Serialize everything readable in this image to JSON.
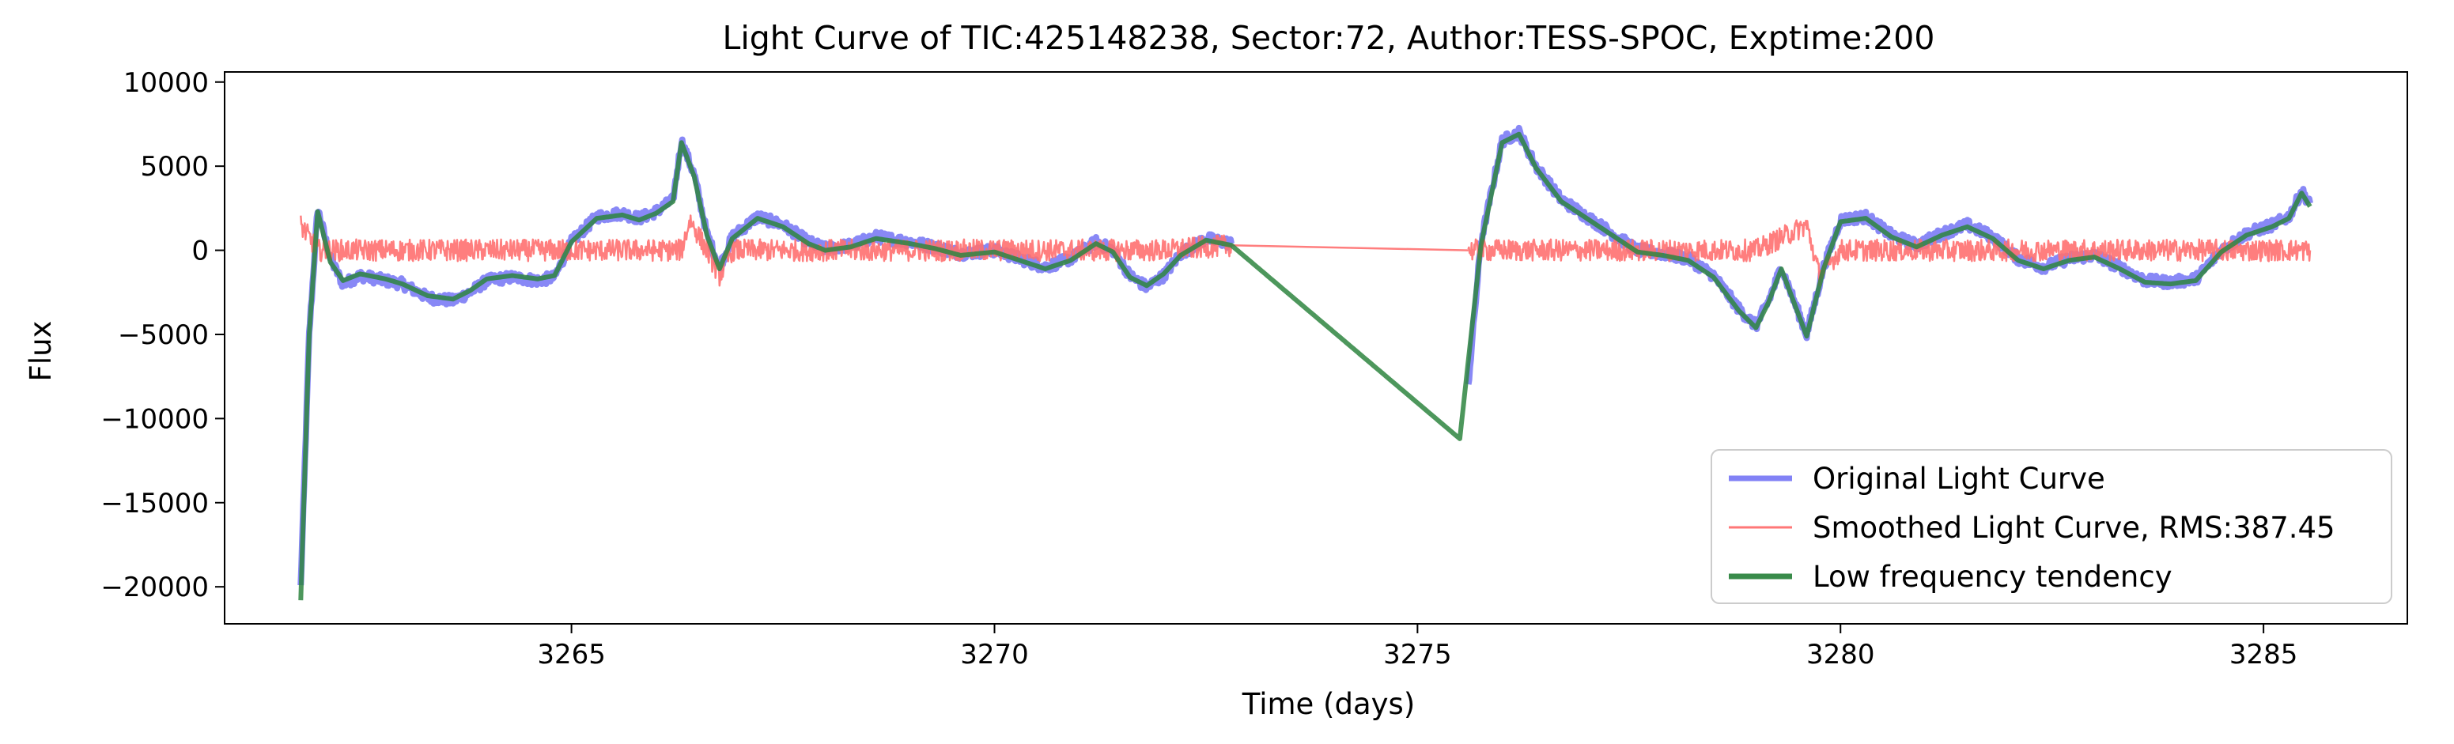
{
  "chart_data": {
    "type": "line",
    "title": "Light Curve of TIC:425148238, Sector:72, Author:TESS-SPOC, Exptime:200",
    "xlabel": "Time (days)",
    "ylabel": "Flux",
    "xlim": [
      3260.9,
      3286.7
    ],
    "ylim": [
      -22200,
      10600
    ],
    "xticks": [
      3265,
      3270,
      3275,
      3280,
      3285
    ],
    "xtick_labels": [
      "3265",
      "3270",
      "3275",
      "3280",
      "3285"
    ],
    "yticks": [
      10000,
      5000,
      0,
      -5000,
      -10000,
      -15000,
      -20000
    ],
    "ytick_labels": [
      "10000",
      "5000",
      "0",
      "−5000",
      "−10000",
      "−15000",
      "−20000"
    ],
    "grid": false,
    "legend_position": "lower-right",
    "series": [
      {
        "name": "Original Light Curve",
        "color": "#7b7bf5",
        "style": "thick-noisy",
        "segments": [
          [
            [
              3261.8,
              -20000
            ],
            [
              3261.9,
              -5000
            ],
            [
              3262.0,
              2500
            ],
            [
              3262.15,
              -500
            ],
            [
              3262.3,
              -2000
            ],
            [
              3262.5,
              -1500
            ],
            [
              3262.8,
              -1800
            ],
            [
              3263.0,
              -2000
            ],
            [
              3263.3,
              -2800
            ],
            [
              3263.6,
              -3000
            ],
            [
              3263.8,
              -2500
            ],
            [
              3264.0,
              -1800
            ],
            [
              3264.3,
              -1600
            ],
            [
              3264.6,
              -1800
            ],
            [
              3264.8,
              -1600
            ],
            [
              3265.0,
              500
            ],
            [
              3265.3,
              2000
            ],
            [
              3265.6,
              2200
            ],
            [
              3265.8,
              1900
            ],
            [
              3266.0,
              2300
            ],
            [
              3266.2,
              3000
            ],
            [
              3266.3,
              6500
            ],
            [
              3266.45,
              4500
            ],
            [
              3266.6,
              1000
            ],
            [
              3266.75,
              -1000
            ],
            [
              3266.9,
              800
            ],
            [
              3267.2,
              2000
            ],
            [
              3267.5,
              1500
            ],
            [
              3267.8,
              500
            ],
            [
              3268.0,
              100
            ],
            [
              3268.3,
              300
            ],
            [
              3268.6,
              800
            ],
            [
              3269.0,
              500
            ],
            [
              3269.3,
              200
            ],
            [
              3269.6,
              -200
            ],
            [
              3270.0,
              0
            ],
            [
              3270.3,
              -500
            ],
            [
              3270.6,
              -1000
            ],
            [
              3270.9,
              -500
            ],
            [
              3271.2,
              500
            ],
            [
              3271.4,
              0
            ],
            [
              3271.6,
              -1500
            ],
            [
              3271.8,
              -2200
            ],
            [
              3272.0,
              -1500
            ],
            [
              3272.2,
              -200
            ],
            [
              3272.5,
              700
            ],
            [
              3272.8,
              400
            ]
          ],
          [
            [
              3275.6,
              -8000
            ],
            [
              3275.75,
              500
            ],
            [
              3276.0,
              6500
            ],
            [
              3276.2,
              7000
            ],
            [
              3276.4,
              5000
            ],
            [
              3276.7,
              3000
            ],
            [
              3277.0,
              2000
            ],
            [
              3277.3,
              1000
            ],
            [
              3277.6,
              0
            ],
            [
              3277.9,
              -200
            ],
            [
              3278.2,
              -500
            ],
            [
              3278.5,
              -1500
            ],
            [
              3278.8,
              -3500
            ],
            [
              3279.0,
              -4500
            ],
            [
              3279.15,
              -3000
            ],
            [
              3279.3,
              -1000
            ],
            [
              3279.45,
              -3000
            ],
            [
              3279.6,
              -5000
            ],
            [
              3279.8,
              -1000
            ],
            [
              3280.0,
              1800
            ],
            [
              3280.3,
              2000
            ],
            [
              3280.6,
              900
            ],
            [
              3280.9,
              300
            ],
            [
              3281.2,
              1000
            ],
            [
              3281.5,
              1500
            ],
            [
              3281.8,
              800
            ],
            [
              3282.1,
              -500
            ],
            [
              3282.4,
              -1000
            ],
            [
              3282.7,
              -500
            ],
            [
              3283.0,
              -300
            ],
            [
              3283.3,
              -1000
            ],
            [
              3283.6,
              -1800
            ],
            [
              3283.9,
              -1900
            ],
            [
              3284.2,
              -1700
            ],
            [
              3284.5,
              0
            ],
            [
              3284.8,
              1000
            ],
            [
              3285.1,
              1500
            ],
            [
              3285.3,
              2000
            ],
            [
              3285.45,
              3500
            ],
            [
              3285.55,
              2800
            ]
          ]
        ]
      },
      {
        "name": "Smoothed Light Curve, RMS:387.45",
        "color": "#ff7070",
        "style": "thin-noisy",
        "rms": 387.45,
        "segments": [
          [
            [
              3261.8,
              1500
            ],
            [
              3262.0,
              0
            ],
            [
              3263.0,
              0
            ],
            [
              3264.0,
              0
            ],
            [
              3265.0,
              0
            ],
            [
              3266.0,
              0
            ],
            [
              3266.3,
              0
            ],
            [
              3266.4,
              1800
            ],
            [
              3266.6,
              0
            ],
            [
              3266.75,
              -1500
            ],
            [
              3266.9,
              0
            ],
            [
              3268.0,
              0
            ],
            [
              3270.0,
              0
            ],
            [
              3272.0,
              0
            ],
            [
              3272.8,
              300
            ]
          ],
          [
            [
              3272.8,
              300
            ],
            [
              3275.6,
              0
            ]
          ],
          [
            [
              3275.6,
              0
            ],
            [
              3276.0,
              0
            ],
            [
              3277.0,
              0
            ],
            [
              3278.0,
              0
            ],
            [
              3279.0,
              0
            ],
            [
              3279.6,
              1500
            ],
            [
              3279.75,
              -1500
            ],
            [
              3280.0,
              0
            ],
            [
              3282.0,
              0
            ],
            [
              3284.0,
              0
            ],
            [
              3285.55,
              0
            ]
          ]
        ]
      },
      {
        "name": "Low frequency tendency",
        "color": "#2e8540",
        "style": "trend",
        "segments": [
          [
            [
              3261.8,
              -20800
            ],
            [
              3261.9,
              -5000
            ],
            [
              3262.0,
              2300
            ],
            [
              3262.15,
              -700
            ],
            [
              3262.3,
              -1800
            ],
            [
              3262.5,
              -1400
            ],
            [
              3262.8,
              -1700
            ],
            [
              3263.0,
              -2000
            ],
            [
              3263.3,
              -2700
            ],
            [
              3263.6,
              -2900
            ],
            [
              3263.8,
              -2400
            ],
            [
              3264.0,
              -1700
            ],
            [
              3264.3,
              -1500
            ],
            [
              3264.6,
              -1700
            ],
            [
              3264.8,
              -1500
            ],
            [
              3265.0,
              500
            ],
            [
              3265.3,
              1900
            ],
            [
              3265.6,
              2100
            ],
            [
              3265.8,
              1800
            ],
            [
              3266.0,
              2200
            ],
            [
              3266.2,
              2900
            ],
            [
              3266.3,
              6400
            ],
            [
              3266.45,
              4400
            ],
            [
              3266.6,
              900
            ],
            [
              3266.75,
              -1100
            ],
            [
              3266.9,
              700
            ],
            [
              3267.2,
              1900
            ],
            [
              3267.5,
              1400
            ],
            [
              3267.8,
              400
            ],
            [
              3268.0,
              0
            ],
            [
              3268.3,
              200
            ],
            [
              3268.6,
              700
            ],
            [
              3269.0,
              400
            ],
            [
              3269.3,
              100
            ],
            [
              3269.6,
              -300
            ],
            [
              3270.0,
              -100
            ],
            [
              3270.3,
              -600
            ],
            [
              3270.6,
              -1100
            ],
            [
              3270.9,
              -600
            ],
            [
              3271.2,
              400
            ],
            [
              3271.4,
              -100
            ],
            [
              3271.6,
              -1600
            ],
            [
              3271.8,
              -2100
            ],
            [
              3272.0,
              -1400
            ],
            [
              3272.2,
              -300
            ],
            [
              3272.5,
              600
            ],
            [
              3272.8,
              300
            ],
            [
              3275.5,
              -11200
            ],
            [
              3275.75,
              300
            ],
            [
              3276.0,
              6400
            ],
            [
              3276.2,
              6900
            ],
            [
              3276.4,
              4900
            ],
            [
              3276.7,
              2900
            ],
            [
              3277.0,
              1900
            ],
            [
              3277.3,
              900
            ],
            [
              3277.6,
              -100
            ],
            [
              3277.9,
              -300
            ],
            [
              3278.2,
              -600
            ],
            [
              3278.5,
              -1600
            ],
            [
              3278.8,
              -3600
            ],
            [
              3279.0,
              -4600
            ],
            [
              3279.15,
              -3100
            ],
            [
              3279.3,
              -1100
            ],
            [
              3279.45,
              -3100
            ],
            [
              3279.6,
              -5100
            ],
            [
              3279.8,
              -1100
            ],
            [
              3280.0,
              1700
            ],
            [
              3280.3,
              1900
            ],
            [
              3280.6,
              800
            ],
            [
              3280.9,
              200
            ],
            [
              3281.2,
              900
            ],
            [
              3281.5,
              1400
            ],
            [
              3281.8,
              700
            ],
            [
              3282.1,
              -600
            ],
            [
              3282.4,
              -1100
            ],
            [
              3282.7,
              -600
            ],
            [
              3283.0,
              -400
            ],
            [
              3283.3,
              -1100
            ],
            [
              3283.6,
              -1900
            ],
            [
              3283.9,
              -2000
            ],
            [
              3284.2,
              -1800
            ],
            [
              3284.5,
              -100
            ],
            [
              3284.8,
              900
            ],
            [
              3285.1,
              1400
            ],
            [
              3285.3,
              1900
            ],
            [
              3285.45,
              3400
            ],
            [
              3285.55,
              2600
            ]
          ]
        ]
      }
    ]
  }
}
